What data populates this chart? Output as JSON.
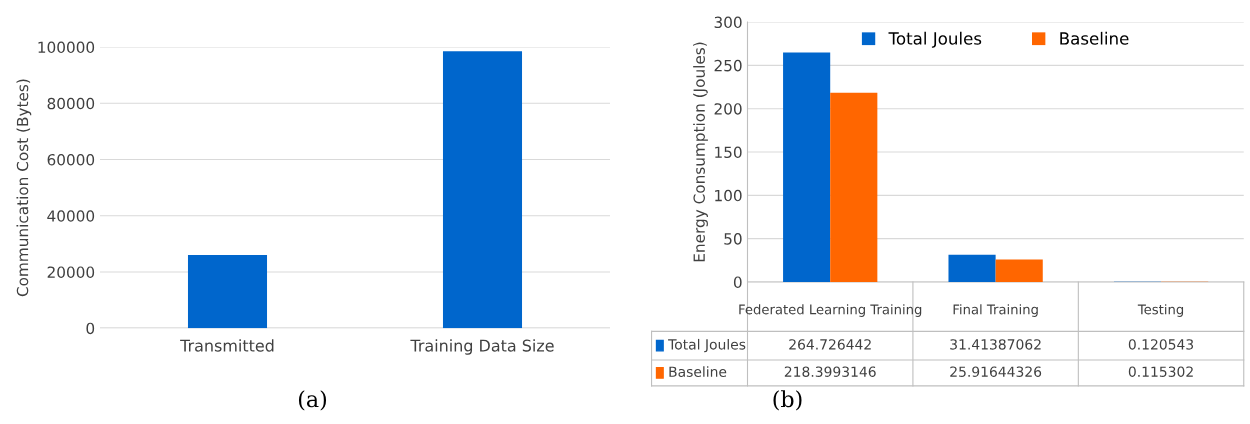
{
  "chart_data": [
    {
      "type": "bar",
      "ylabel": "Communication Cost (Bytes)",
      "categories": [
        "Transmitted",
        "Training Data Size"
      ],
      "values": [
        26000,
        98500
      ],
      "color": "#0066cc",
      "ylim": [
        0,
        100000
      ],
      "yticks": [
        0,
        20000,
        40000,
        60000,
        80000,
        100000
      ],
      "grid": "y",
      "legend": false,
      "annotations": [
        "(a)"
      ]
    },
    {
      "type": "bar",
      "ylabel": "Energy Consumption (Joules)",
      "categories": [
        "Federated Learning Training",
        "Final Training",
        "Testing"
      ],
      "series": [
        {
          "name": "Total Joules",
          "color": "#0066cc",
          "values": [
            264.726442,
            31.41387062,
            0.120543
          ]
        },
        {
          "name": "Baseline",
          "color": "#ff6600",
          "values": [
            218.3993146,
            25.91644326,
            0.115302
          ]
        }
      ],
      "ylim": [
        0,
        300
      ],
      "yticks": [
        0,
        50,
        100,
        150,
        200,
        250,
        300
      ],
      "grid": "y",
      "legend": "top",
      "data_labels": true,
      "annotations": [
        "(b)"
      ]
    }
  ]
}
